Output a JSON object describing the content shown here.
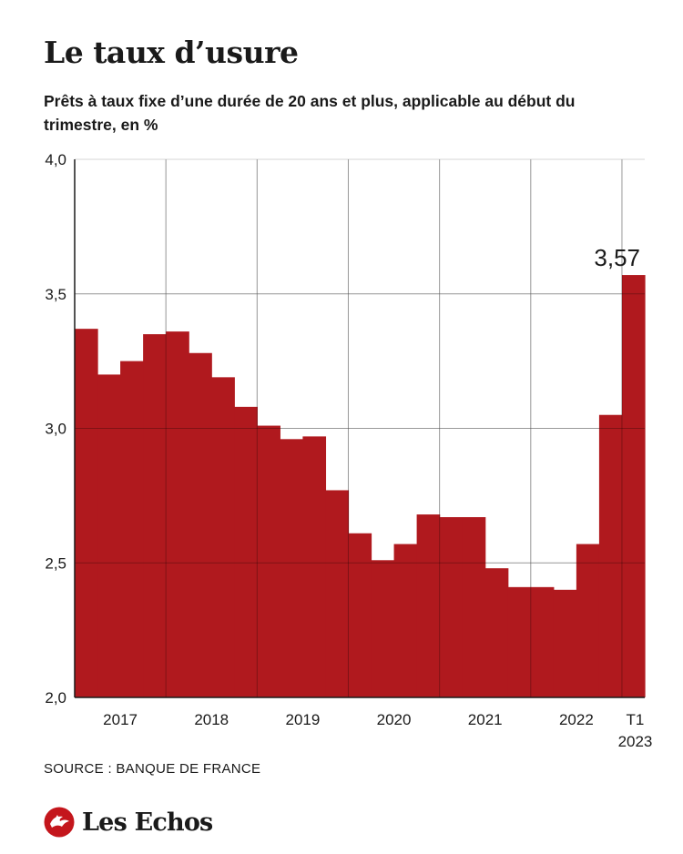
{
  "header": {
    "title": "Le taux d’usure",
    "subtitle": "Prêts à taux fixe d’une durée de 20 ans et plus, applicable au début du trimestre, en %"
  },
  "chart_data": {
    "type": "bar",
    "title": "Le taux d’usure",
    "subtitle": "Prêts à taux fixe d’une durée de 20 ans et plus, applicable au début du trimestre, en %",
    "xlabel": "",
    "ylabel": "",
    "ylim": [
      2.0,
      4.0
    ],
    "yticks": [
      "2,0",
      "2,5",
      "3,0",
      "3,5",
      "4,0"
    ],
    "ytick_values": [
      2.0,
      2.5,
      3.0,
      3.5,
      4.0
    ],
    "year_labels": [
      "2017",
      "2018",
      "2019",
      "2020",
      "2021",
      "2022"
    ],
    "last_label": [
      "T1",
      "2023"
    ],
    "categories": [
      "T1 2017",
      "T2 2017",
      "T3 2017",
      "T4 2017",
      "T1 2018",
      "T2 2018",
      "T3 2018",
      "T4 2018",
      "T1 2019",
      "T2 2019",
      "T3 2019",
      "T4 2019",
      "T1 2020",
      "T2 2020",
      "T3 2020",
      "T4 2020",
      "T1 2021",
      "T2 2021",
      "T3 2021",
      "T4 2021",
      "T1 2022",
      "T2 2022",
      "T3 2022",
      "T4 2022",
      "T1 2023"
    ],
    "values": [
      3.37,
      3.2,
      3.25,
      3.35,
      3.36,
      3.28,
      3.19,
      3.08,
      3.01,
      2.96,
      2.97,
      2.77,
      2.61,
      2.51,
      2.57,
      2.68,
      2.67,
      2.67,
      2.48,
      2.41,
      2.41,
      2.4,
      2.57,
      3.05,
      3.57
    ],
    "annotation": {
      "label": "3,57",
      "value": 3.57
    },
    "bar_color": "#b0191e",
    "grid": true
  },
  "footer": {
    "source": "SOURCE : BANQUE DE FRANCE",
    "brand": "Les Echos",
    "brand_color": "#c4161c"
  }
}
